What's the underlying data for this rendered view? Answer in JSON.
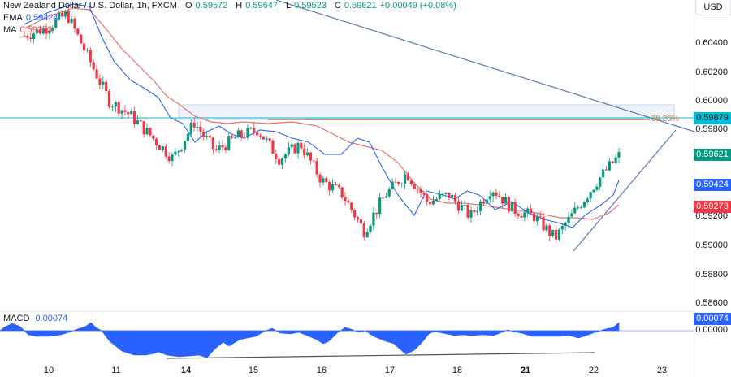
{
  "header": {
    "symbol": "New Zealand Dollar / U.S. Dollar, 1h, FXCM",
    "open_key": "O",
    "open": "0.59572",
    "high_key": "H",
    "high": "0.59647",
    "low_key": "L",
    "low": "0.59523",
    "close_key": "C",
    "close": "0.59621",
    "change": "+0.00049 (+0.08%)",
    "ema_label": "EMA",
    "ema_value": "0.59424",
    "ma_label": "MA",
    "ma_value": "0.59273"
  },
  "price_axis": {
    "currency": "USD",
    "ticks": [
      "0.60400",
      "0.60200",
      "0.60000",
      "0.59800",
      "0.59200",
      "0.59000",
      "0.58800",
      "0.58600"
    ]
  },
  "badges": {
    "fib_level": "0.59879",
    "last_price": "0.59621",
    "ema": "0.59424",
    "ma": "0.59273",
    "macd": "0.00074",
    "macd_zero": "0.00000"
  },
  "colors": {
    "up": "#089981",
    "down": "#f23645",
    "ema": "#2962ff",
    "ma": "#f23645",
    "fib": "#00bcd4",
    "fib_text": "#c8813e",
    "macd": "#2962ff",
    "trend": "#5b7bb5"
  },
  "fib": {
    "label": "38.20%"
  },
  "macd": {
    "label": "MACD",
    "value": "0.00074"
  },
  "time_axis": {
    "labels": [
      "10",
      "11",
      "14",
      "15",
      "16",
      "17",
      "18",
      "21",
      "22",
      "23"
    ],
    "bold": [
      "14",
      "21"
    ]
  },
  "chart_data": [
    {
      "type": "candlestick",
      "title": "New Zealand Dollar / U.S. Dollar, 1h, FXCM",
      "xlabel": "",
      "ylabel": "USD",
      "x": [
        "10",
        "11",
        "14",
        "15",
        "16",
        "17",
        "18",
        "21",
        "22",
        "23"
      ],
      "ylim": [
        0.5855,
        0.606
      ],
      "last": {
        "open": 0.59572,
        "high": 0.59647,
        "low": 0.59523,
        "close": 0.59621,
        "change": 0.00049,
        "change_pct": 0.08
      },
      "indicators": {
        "EMA": 0.59424,
        "MA": 0.59273
      },
      "annotations": [
        {
          "type": "fib_level",
          "label": "38.20%",
          "value": 0.59879
        },
        {
          "type": "zone",
          "from": 0.5986,
          "to": 0.5997
        },
        {
          "type": "trendline",
          "desc": "descending resistance from ~0.6062 (day 11) to ~0.5980 (day 23)"
        },
        {
          "type": "trendline",
          "desc": "ascending support from ~0.5895 (day 21/22) upward"
        }
      ],
      "approx_closes": [
        0.6045,
        0.605,
        0.606,
        0.603,
        0.6,
        0.599,
        0.5975,
        0.596,
        0.5985,
        0.5965,
        0.5975,
        0.598,
        0.596,
        0.597,
        0.5945,
        0.5935,
        0.591,
        0.5935,
        0.595,
        0.593,
        0.5935,
        0.592,
        0.594,
        0.5925,
        0.592,
        0.5905,
        0.5925,
        0.5945,
        0.5962
      ]
    },
    {
      "type": "area",
      "title": "MACD",
      "series": [
        {
          "name": "MACD",
          "last": 0.00074
        }
      ],
      "ylim": [
        -0.003,
        0.001
      ],
      "zero_line": 0.0,
      "annotations": [
        {
          "type": "trendline",
          "desc": "rising lows line under histogram (day 14 to day 22)"
        }
      ]
    }
  ]
}
